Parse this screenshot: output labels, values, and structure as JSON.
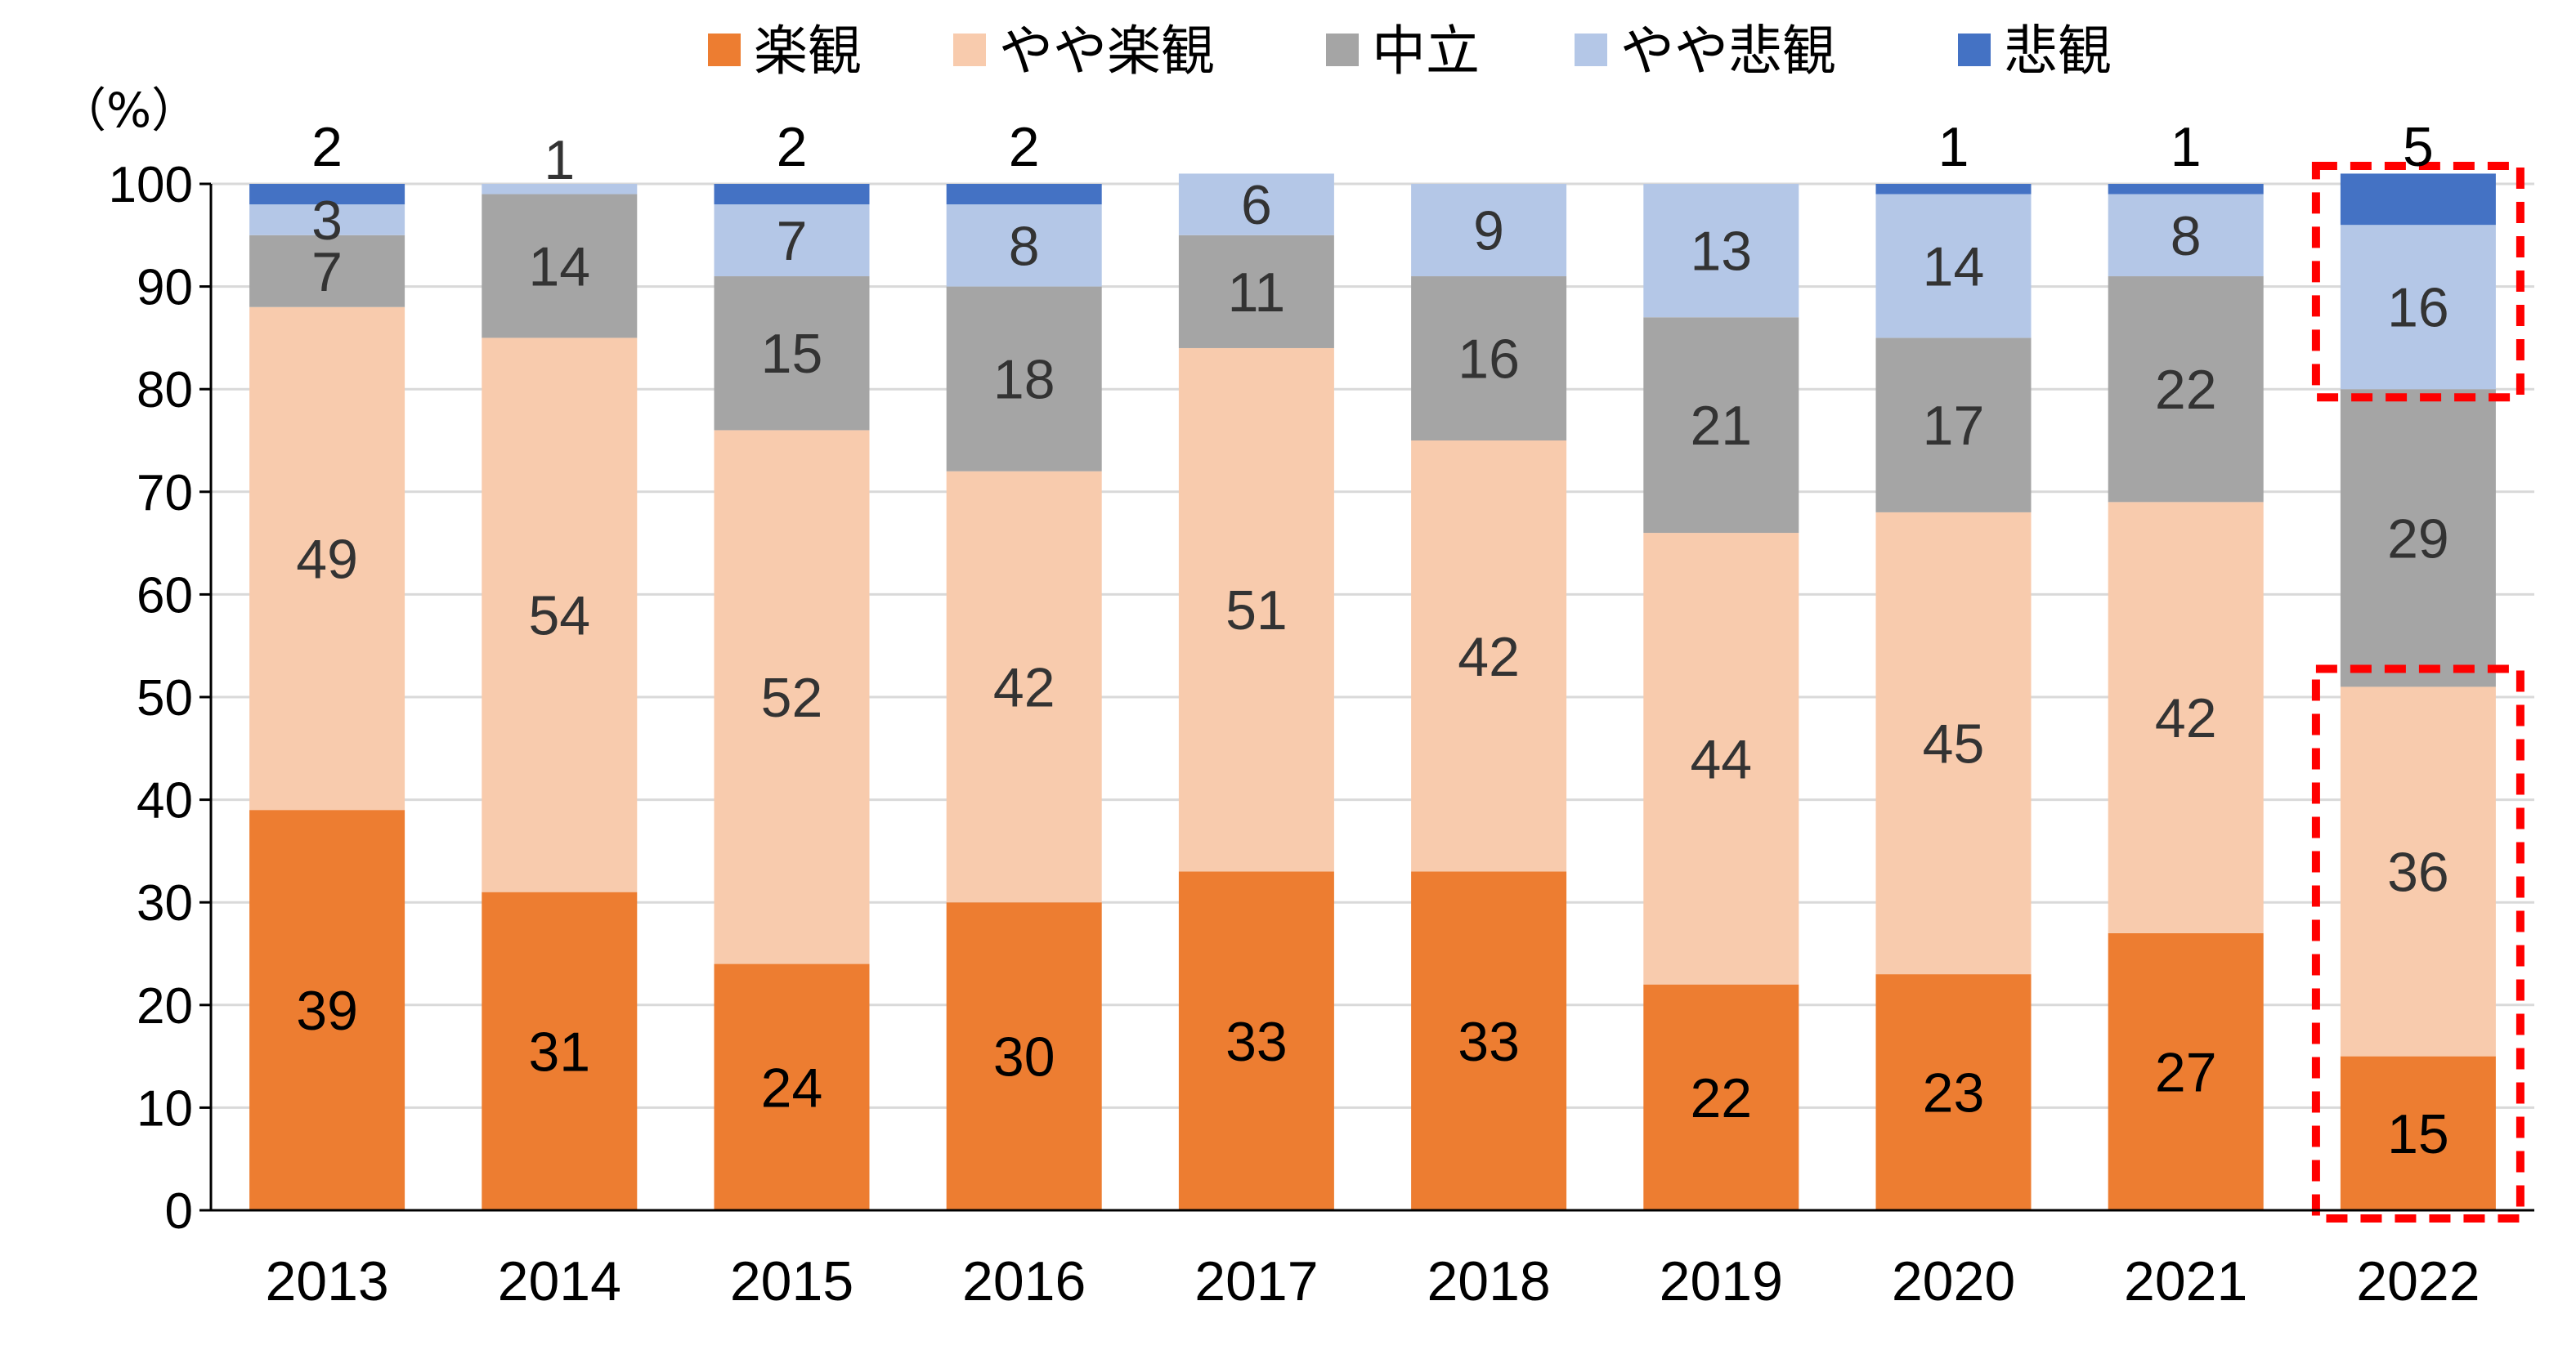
{
  "unit_label": "（%）",
  "chart_data": {
    "type": "bar",
    "stacked": true,
    "categories": [
      "2013",
      "2014",
      "2015",
      "2016",
      "2017",
      "2018",
      "2019",
      "2020",
      "2021",
      "2022"
    ],
    "series": [
      {
        "name": "楽観",
        "color": "#ED7D31",
        "values": [
          39,
          31,
          24,
          30,
          33,
          33,
          22,
          23,
          27,
          15
        ]
      },
      {
        "name": "やや楽観",
        "color": "#F8CBAD",
        "values": [
          49,
          54,
          52,
          42,
          51,
          42,
          44,
          45,
          42,
          36
        ]
      },
      {
        "name": "中立",
        "color": "#A5A5A5",
        "values": [
          7,
          14,
          15,
          18,
          11,
          16,
          21,
          17,
          22,
          29
        ]
      },
      {
        "name": "やや悲観",
        "color": "#B4C7E7",
        "values": [
          3,
          1,
          7,
          8,
          6,
          9,
          13,
          14,
          8,
          16
        ]
      },
      {
        "name": "悲観",
        "color": "#4472C4",
        "values": [
          2,
          0,
          2,
          2,
          0,
          0,
          0,
          1,
          1,
          5
        ]
      }
    ],
    "segment_labels": [
      [
        "39",
        "49",
        "7",
        "3",
        "2"
      ],
      [
        "31",
        "54",
        "14",
        "1",
        ""
      ],
      [
        "24",
        "52",
        "15",
        "7",
        "2"
      ],
      [
        "30",
        "42",
        "18",
        "8",
        "2"
      ],
      [
        "33",
        "51",
        "11",
        "6",
        ""
      ],
      [
        "33",
        "42",
        "16",
        "9",
        ""
      ],
      [
        "22",
        "44",
        "21",
        "13",
        ""
      ],
      [
        "23",
        "45",
        "17",
        "14",
        "1"
      ],
      [
        "27",
        "42",
        "22",
        "8",
        "1"
      ],
      [
        "15",
        "36",
        "29",
        "16",
        "5"
      ]
    ],
    "y_ticks": [
      "0",
      "10",
      "20",
      "30",
      "40",
      "50",
      "60",
      "70",
      "80",
      "90",
      "100"
    ],
    "ylim": [
      0,
      100
    ],
    "grid": true,
    "legend_position": "top",
    "highlights": [
      {
        "category": "2022",
        "from": 0,
        "to": 51,
        "color": "#FF0000"
      },
      {
        "category": "2022",
        "from": 80,
        "to": 100,
        "color": "#FF0000"
      }
    ]
  }
}
